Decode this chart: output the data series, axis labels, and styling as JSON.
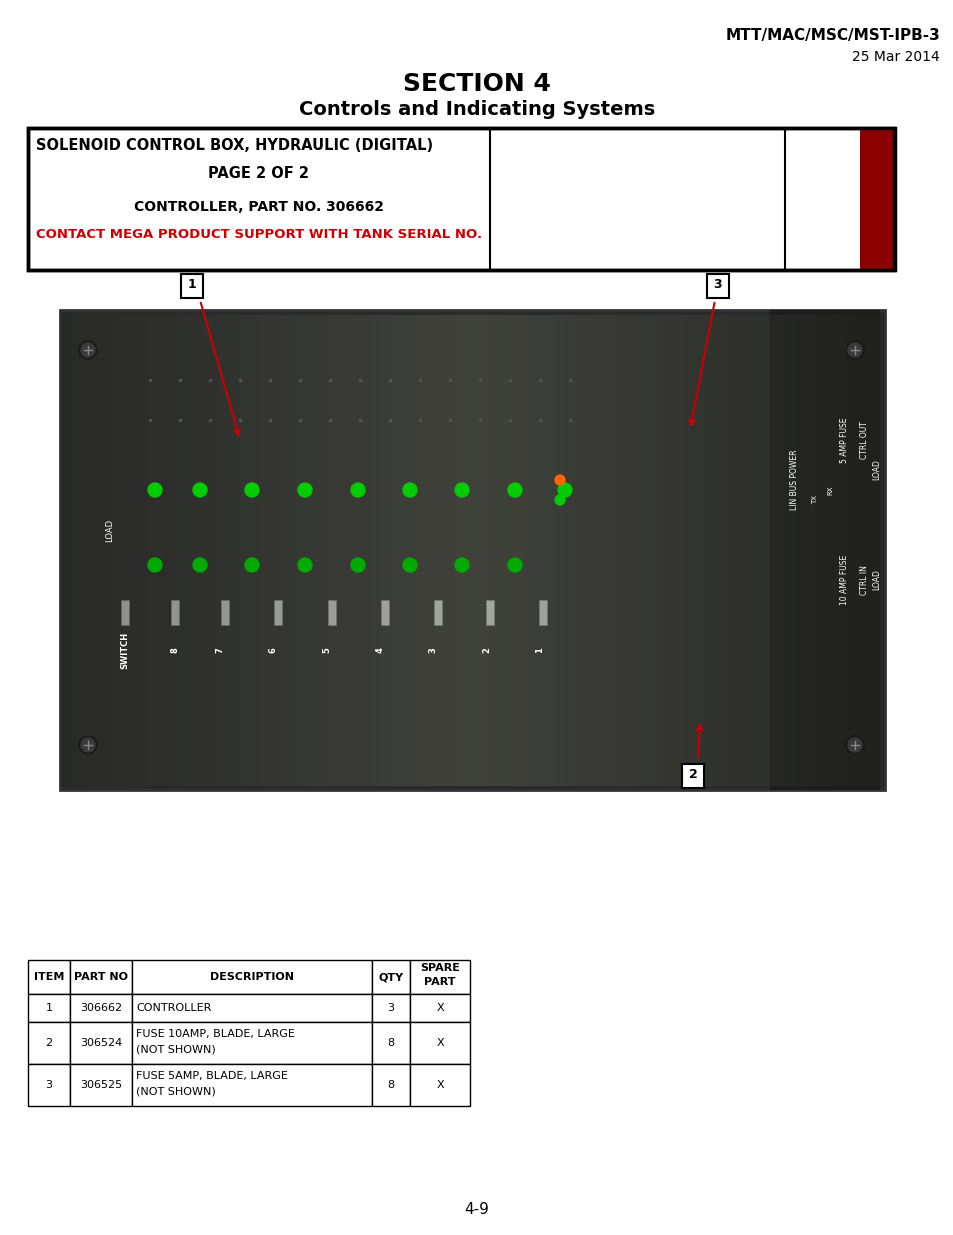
{
  "page_header_right_line1": "MTT/MAC/MSC/MST-IPB-3",
  "page_header_right_line2": "25 Mar 2014",
  "section_title": "SECTION 4",
  "section_subtitle": "Controls and Indicating Systems",
  "box_line1": "SOLENOID CONTROL BOX, HYDRAULIC (DIGITAL)",
  "box_line2": "PAGE 2 OF 2",
  "box_line3": "CONTROLLER, PART NO. 306662",
  "box_line4": "CONTACT MEGA PRODUCT SUPPORT WITH TANK SERIAL NO.",
  "table_headers": [
    "ITEM",
    "PART NO",
    "DESCRIPTION",
    "QTY",
    "SPARE\nPART"
  ],
  "table_rows": [
    [
      "1",
      "306662",
      "CONTROLLER",
      "3",
      "X"
    ],
    [
      "2",
      "306524",
      "FUSE 10AMP, BLADE, LARGE\n(NOT SHOWN)",
      "8",
      "X"
    ],
    [
      "3",
      "306525",
      "FUSE 5AMP, BLADE, LARGE\n(NOT SHOWN)",
      "8",
      "X"
    ]
  ],
  "page_number": "4-9",
  "callout_1_label": "1",
  "callout_2_label": "2",
  "callout_3_label": "3",
  "bg_color": "#ffffff",
  "text_color": "#000000",
  "red_color": "#cc0000",
  "dark_red_color": "#8b0000"
}
